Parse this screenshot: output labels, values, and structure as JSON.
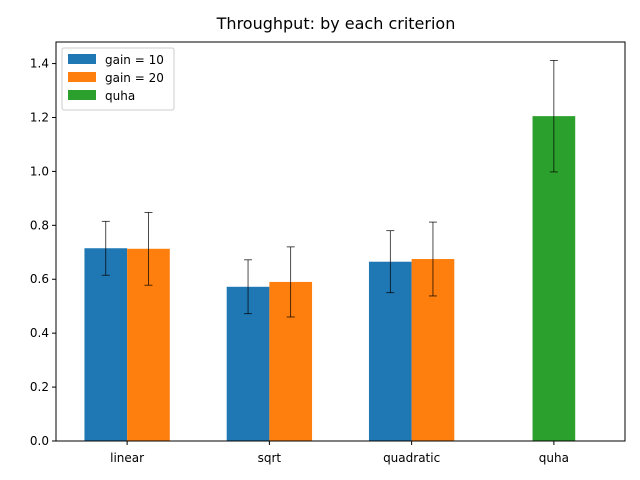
{
  "chart_data": {
    "type": "bar",
    "title": "Throughput: by each criterion",
    "xlabel": "",
    "ylabel": "",
    "categories": [
      "linear",
      "sqrt",
      "quadratic",
      "quha"
    ],
    "ylim": [
      0,
      1.48
    ],
    "yticks": [
      "0.0",
      "0.2",
      "0.4",
      "0.6",
      "0.8",
      "1.0",
      "1.2",
      "1.4"
    ],
    "legend_position": "top-left",
    "grid": false,
    "series": [
      {
        "name": "gain = 10",
        "color": "#1f77b4",
        "values": [
          0.715,
          0.572,
          0.665,
          null
        ],
        "errors": [
          0.1,
          0.1,
          0.115,
          null
        ]
      },
      {
        "name": "gain = 20",
        "color": "#ff7f0e",
        "values": [
          0.713,
          0.59,
          0.675,
          null
        ],
        "errors": [
          0.135,
          0.13,
          0.137,
          null
        ]
      },
      {
        "name": "quha",
        "color": "#2ca02c",
        "values": [
          null,
          null,
          null,
          1.205
        ],
        "errors": [
          null,
          null,
          null,
          0.207
        ]
      }
    ]
  }
}
